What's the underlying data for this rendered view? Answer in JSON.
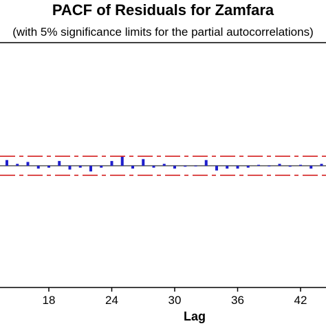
{
  "chart_data": {
    "type": "bar",
    "title": "PACF of Residuals for Zamfara",
    "subtitle": "(with 5% significance limits for the partial autocorrelations)",
    "xlabel": "Lag",
    "ylabel": "",
    "x_visible_range": [
      13,
      45
    ],
    "xticks": [
      18,
      24,
      30,
      36,
      42
    ],
    "ylim": [
      -1,
      1
    ],
    "significance_limit": 0.1,
    "colors": {
      "bars": "#1f1fcc",
      "limits": "#d42020",
      "zero_line": "#000000",
      "axes": "#000000"
    },
    "lags": [
      13,
      14,
      15,
      16,
      17,
      18,
      19,
      20,
      21,
      22,
      23,
      24,
      25,
      26,
      27,
      28,
      29,
      30,
      31,
      32,
      33,
      34,
      35,
      36,
      37,
      38,
      39,
      40,
      41,
      42,
      43,
      44
    ],
    "values": [
      -0.04,
      0.06,
      0.02,
      0.04,
      -0.03,
      -0.02,
      0.05,
      -0.04,
      -0.02,
      -0.06,
      -0.02,
      0.05,
      0.1,
      -0.03,
      0.07,
      -0.02,
      0.02,
      -0.03,
      -0.01,
      0.0,
      0.06,
      -0.05,
      -0.03,
      -0.03,
      -0.02,
      0.01,
      0.0,
      0.02,
      -0.01,
      0.01,
      -0.03,
      0.02
    ]
  }
}
